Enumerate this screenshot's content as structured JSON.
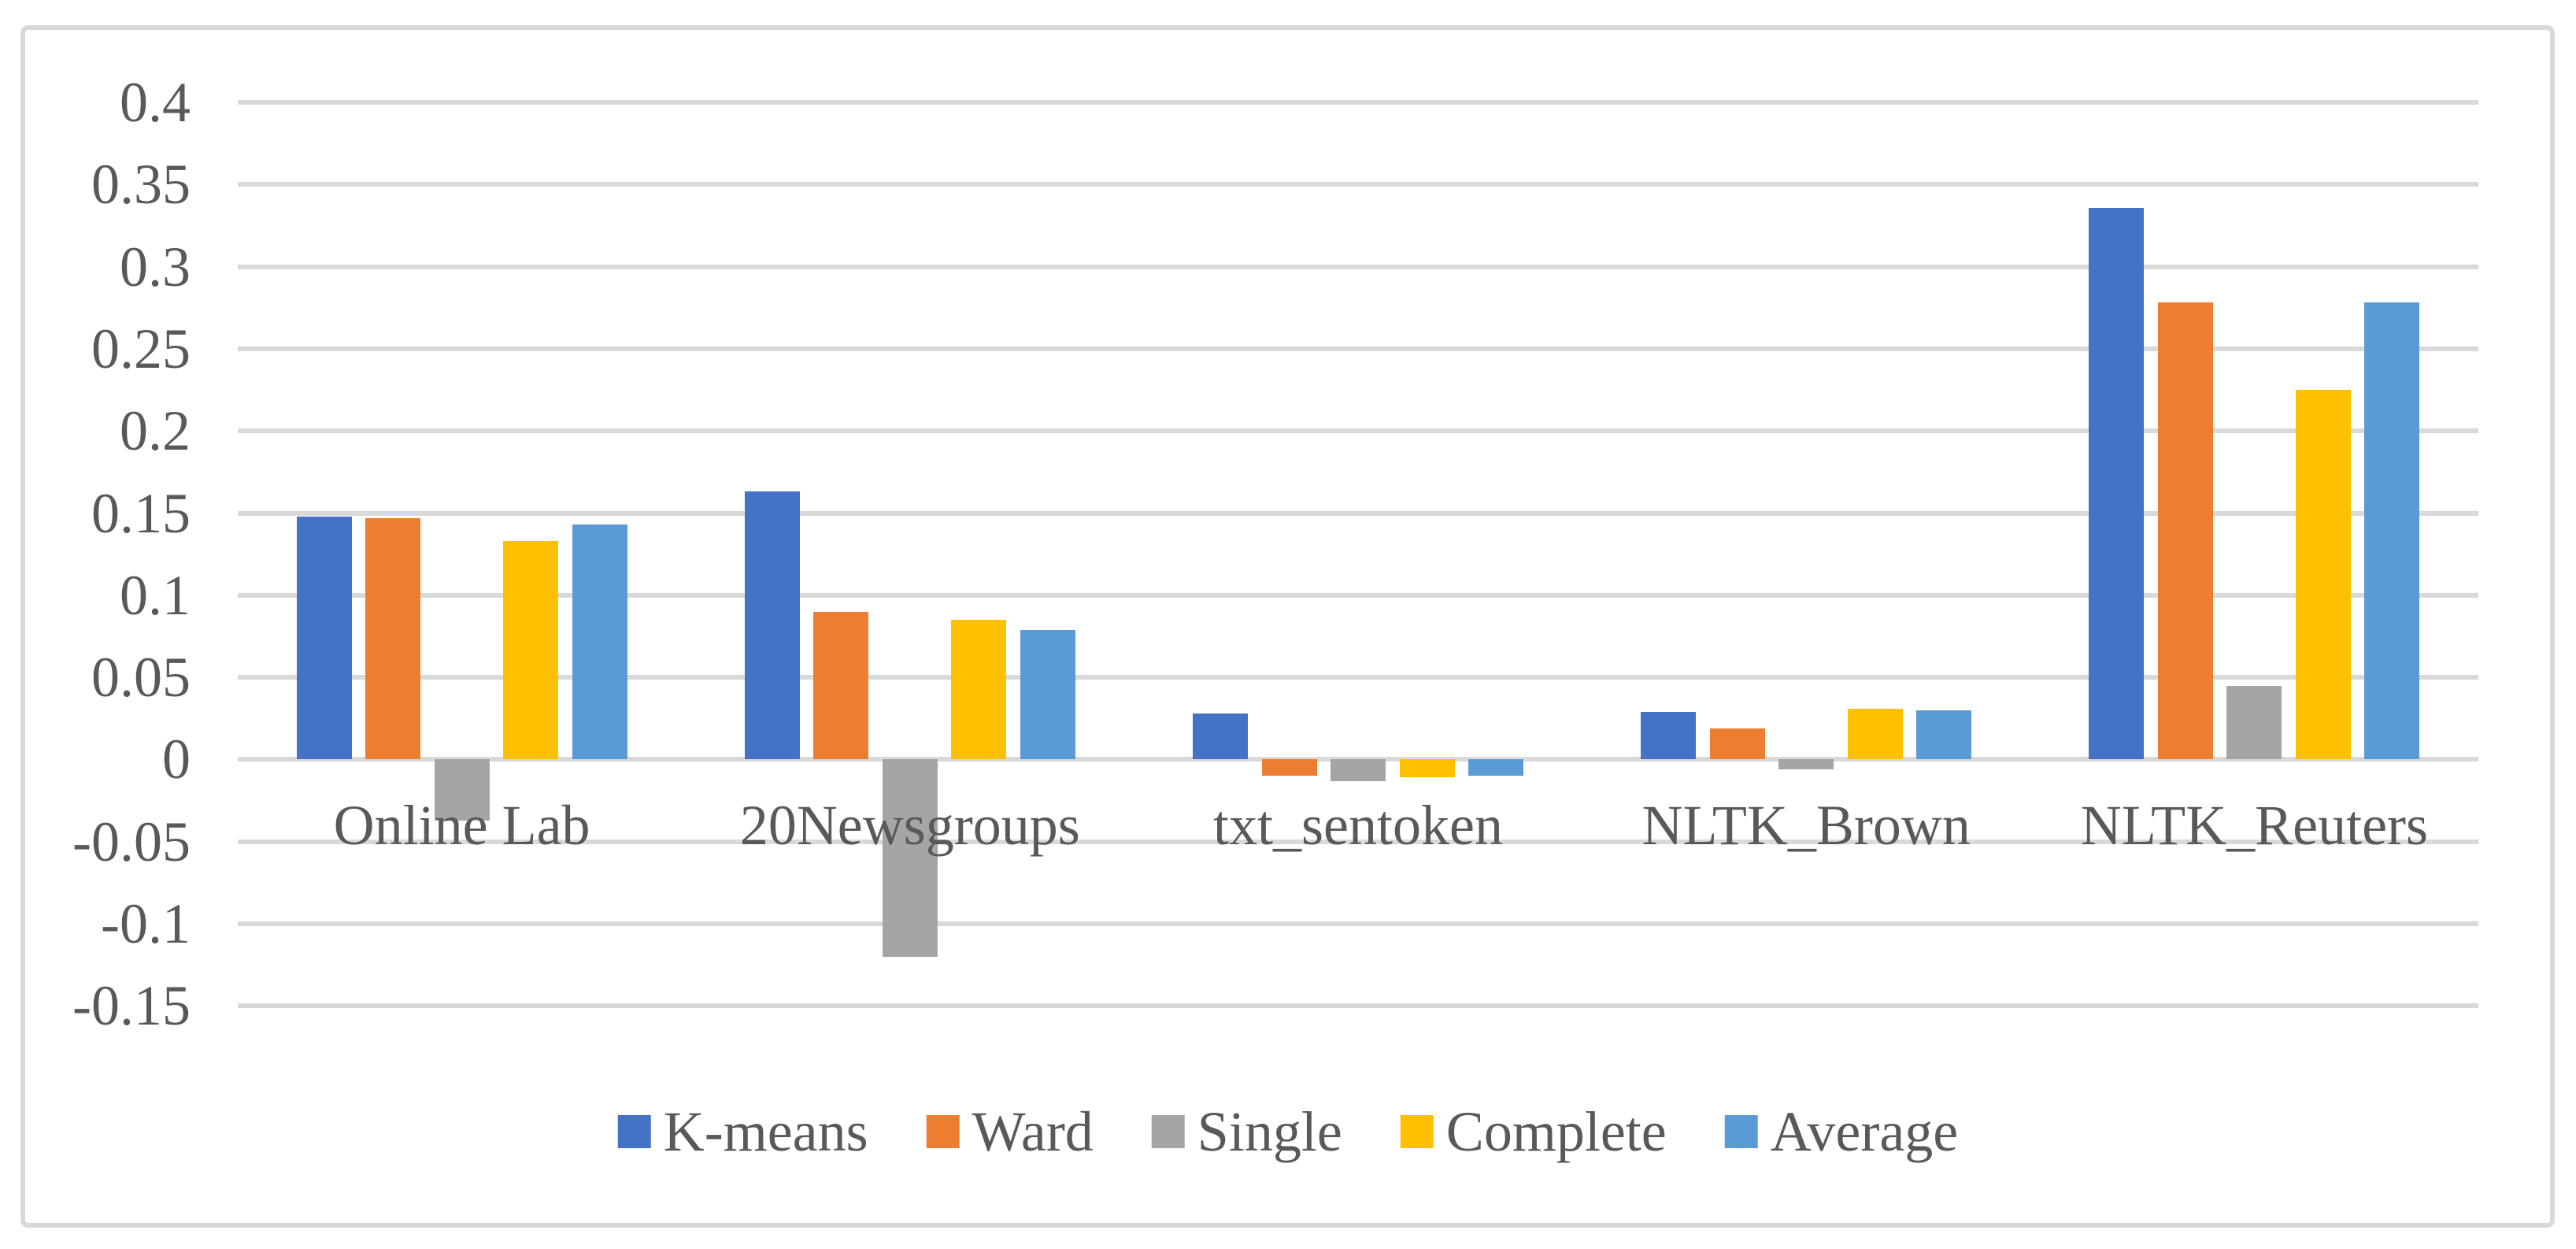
{
  "chart_data": {
    "type": "bar",
    "title": "",
    "xlabel": "",
    "ylabel": "",
    "categories": [
      "Online Lab",
      "20Newsgroups",
      "txt_sentoken",
      "NLTK_Brown",
      "NLTK_Reuters"
    ],
    "series": [
      {
        "name": "K-means",
        "color": "#4472C4",
        "values": [
          0.148,
          0.163,
          0.028,
          0.029,
          0.336
        ]
      },
      {
        "name": "Ward",
        "color": "#ED7D31",
        "values": [
          0.147,
          0.09,
          -0.01,
          0.019,
          0.278
        ]
      },
      {
        "name": "Single",
        "color": "#A5A5A5",
        "values": [
          -0.037,
          -0.12,
          -0.013,
          -0.006,
          0.045
        ]
      },
      {
        "name": "Complete",
        "color": "#FFC000",
        "values": [
          0.133,
          0.085,
          -0.011,
          0.031,
          0.225
        ]
      },
      {
        "name": "Average",
        "color": "#5B9BD5",
        "values": [
          0.143,
          0.079,
          -0.01,
          0.03,
          0.278
        ]
      }
    ],
    "y_axis": {
      "min": -0.15,
      "max": 0.4,
      "tick_step": 0.05,
      "tick_labels": [
        "0.4",
        "0.35",
        "0.3",
        "0.25",
        "0.2",
        "0.15",
        "0.1",
        "0.05",
        "0",
        "-0.05",
        "-0.1",
        "-0.15"
      ]
    },
    "grid": true,
    "legend_position": "bottom-center",
    "colors": {
      "gridline": "#D9D9D9",
      "frame_border": "#D9D9D9",
      "text": "#595959",
      "background": "#FFFFFF"
    }
  }
}
